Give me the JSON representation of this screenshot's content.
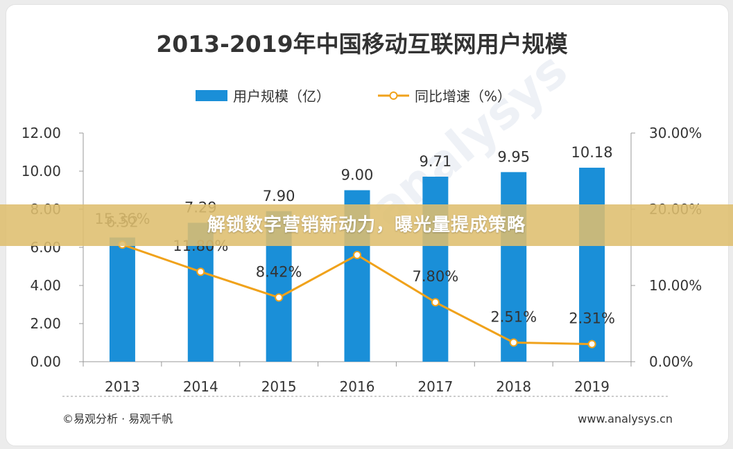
{
  "chart_data": {
    "type": "bar",
    "title": "2013-2019年中国移动互联网用户规模",
    "categories": [
      "2013",
      "2014",
      "2015",
      "2016",
      "2017",
      "2018",
      "2019"
    ],
    "series": [
      {
        "name": "用户规模（亿）",
        "kind": "bar",
        "axis": "left",
        "values": [
          6.52,
          7.29,
          7.9,
          9.0,
          9.71,
          9.95,
          10.18
        ],
        "labels": [
          "6.52",
          "7.29",
          "7.90",
          "9.00",
          "9.71",
          "9.95",
          "10.18"
        ],
        "color": "#1a8fd8"
      },
      {
        "name": "同比增速（%）",
        "kind": "line",
        "axis": "right",
        "values": [
          15.36,
          11.8,
          8.42,
          14.0,
          7.8,
          2.51,
          2.31
        ],
        "labels": [
          "15.36%",
          "11.80%",
          "8.42%",
          "",
          "7.80%",
          "2.51%",
          "2.31%"
        ],
        "color": "#f0a21b"
      }
    ],
    "y_left": {
      "range": [
        0,
        12
      ],
      "ticks": [
        "0.00",
        "2.00",
        "4.00",
        "6.00",
        "8.00",
        "10.00",
        "12.00"
      ]
    },
    "y_right": {
      "range": [
        0,
        30
      ],
      "ticks": [
        "0.00%",
        "10.00%",
        "20.00%",
        "30.00%"
      ]
    },
    "legend_position": "top-center",
    "grid": false
  },
  "footer": {
    "source": "©易观分析 · 易观千帆",
    "url": "www.analysys.cn"
  },
  "watermark": {
    "text": "analysys"
  },
  "banner": {
    "text": "解锁数字营销新动力，曝光量提成策略"
  }
}
